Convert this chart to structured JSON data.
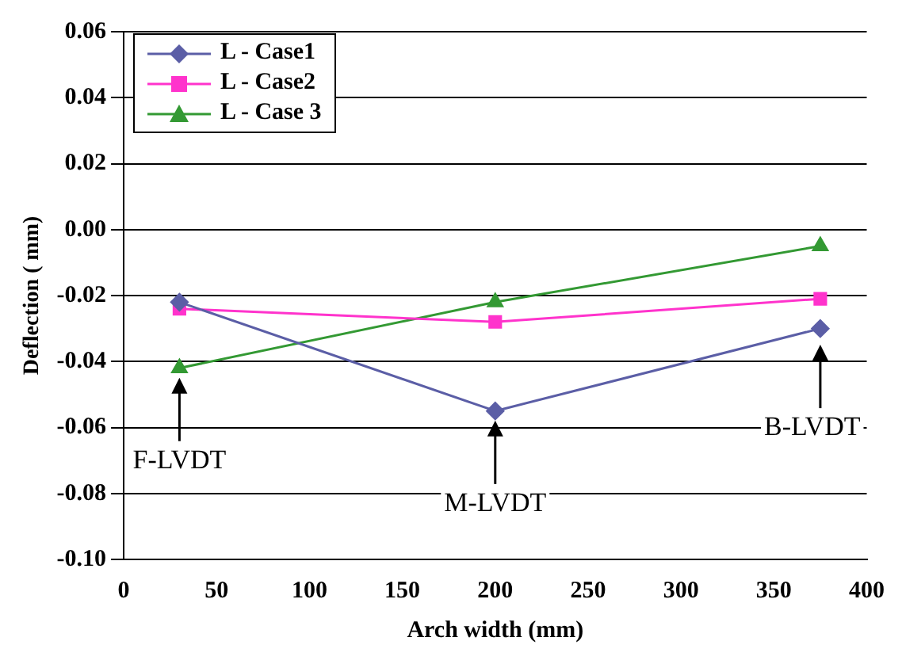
{
  "chart_data": {
    "type": "line",
    "xlabel": "Arch width (mm)",
    "ylabel": "Deflection ( mm)",
    "x": [
      30,
      200,
      375
    ],
    "series": [
      {
        "name": "L - Case1",
        "color": "#5b5ea6",
        "marker": "diamond",
        "values": [
          -0.022,
          -0.055,
          -0.03
        ]
      },
      {
        "name": "L - Case2",
        "color": "#ff33cc",
        "marker": "square",
        "values": [
          -0.024,
          -0.028,
          -0.021
        ]
      },
      {
        "name": "L - Case 3",
        "color": "#339933",
        "marker": "triangle",
        "values": [
          -0.042,
          -0.022,
          -0.005
        ]
      }
    ],
    "xlim": [
      0,
      400
    ],
    "xticks": [
      0,
      50,
      100,
      150,
      200,
      250,
      300,
      350,
      400
    ],
    "ylim": [
      -0.1,
      0.06
    ],
    "yticks": [
      {
        "value": -0.1,
        "label": "-0.10"
      },
      {
        "value": -0.08,
        "label": "-0.08"
      },
      {
        "value": -0.06,
        "label": "-0.06"
      },
      {
        "value": -0.04,
        "label": "-0.04"
      },
      {
        "value": -0.02,
        "label": "-0.02"
      },
      {
        "value": 0,
        "label": "0.00"
      },
      {
        "value": 0.02,
        "label": "0.02"
      },
      {
        "value": 0.04,
        "label": "0.04"
      },
      {
        "value": 0.06,
        "label": "0.06"
      }
    ],
    "grid": "y",
    "legend": "top left",
    "line_style": "solid",
    "annotations": [
      {
        "text": "F-LVDT",
        "x": 30,
        "y": -0.043
      },
      {
        "text": "M-LVDT",
        "x": 200,
        "y": -0.056
      },
      {
        "text": "B-LVDT",
        "x": 375,
        "y": -0.033
      }
    ]
  }
}
